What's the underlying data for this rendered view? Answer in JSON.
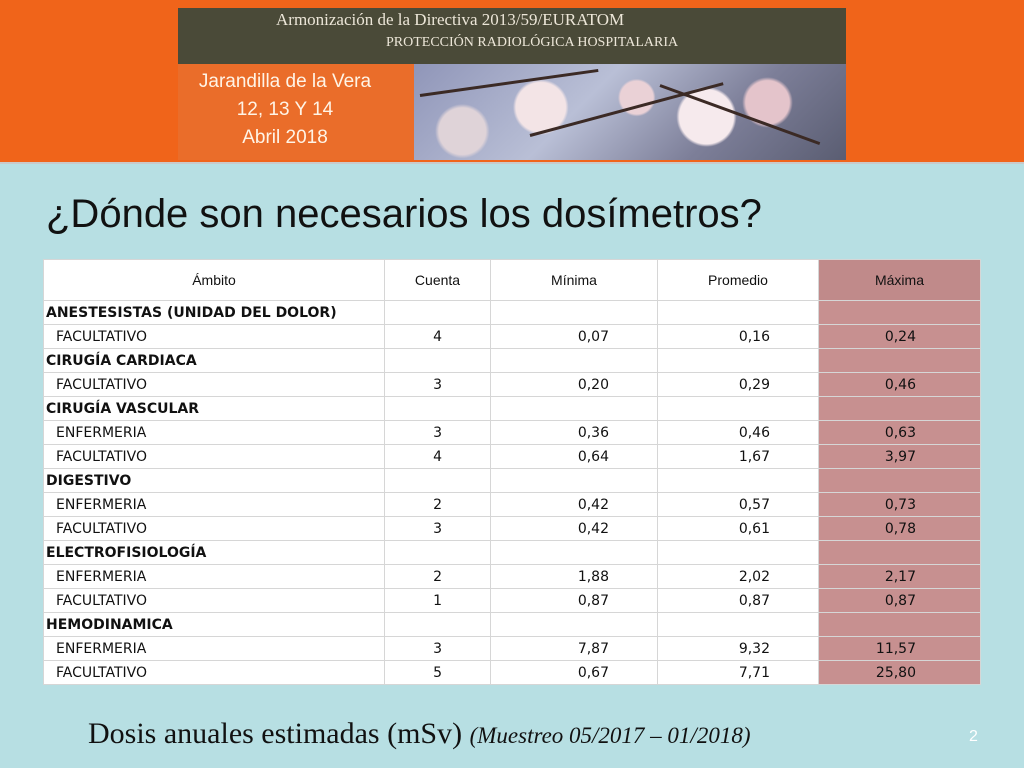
{
  "header": {
    "title": "Armonización de la Directiva 2013/59/EURATOM",
    "subtitle": "PROTECCIÓN RADIOLÓGICA HOSPITALARIA",
    "venue": [
      "Jarandilla de la Vera",
      "12, 13 Y 14",
      "Abril 2018"
    ]
  },
  "slide": {
    "title": "¿Dónde son necesarios los dosímetros?",
    "footer_main": "Dosis anuales estimadas (mSv) ",
    "footer_note": "(Muestreo 05/2017 – 01/2018)",
    "page_number": "2"
  },
  "table": {
    "headers": [
      "Ámbito",
      "Cuenta",
      "Mínima",
      "Promedio",
      "Máxima"
    ],
    "rows": [
      {
        "type": "group",
        "label": "ANESTESISTAS (UNIDAD DEL DOLOR)"
      },
      {
        "type": "item",
        "label": "FACULTATIVO",
        "cuenta": "4",
        "minima": "0,07",
        "promedio": "0,16",
        "maxima": "0,24"
      },
      {
        "type": "group",
        "label": "CIRUGÍA CARDIACA"
      },
      {
        "type": "item",
        "label": "FACULTATIVO",
        "cuenta": "3",
        "minima": "0,20",
        "promedio": "0,29",
        "maxima": "0,46"
      },
      {
        "type": "group",
        "label": "CIRUGÍA VASCULAR"
      },
      {
        "type": "item",
        "label": "ENFERMERIA",
        "cuenta": "3",
        "minima": "0,36",
        "promedio": "0,46",
        "maxima": "0,63"
      },
      {
        "type": "item",
        "label": "FACULTATIVO",
        "cuenta": "4",
        "minima": "0,64",
        "promedio": "1,67",
        "maxima": "3,97"
      },
      {
        "type": "group",
        "label": "DIGESTIVO"
      },
      {
        "type": "item",
        "label": "ENFERMERIA",
        "cuenta": "2",
        "minima": "0,42",
        "promedio": "0,57",
        "maxima": "0,73"
      },
      {
        "type": "item",
        "label": "FACULTATIVO",
        "cuenta": "3",
        "minima": "0,42",
        "promedio": "0,61",
        "maxima": "0,78"
      },
      {
        "type": "group",
        "label": "ELECTROFISIOLOGÍA"
      },
      {
        "type": "item",
        "label": "ENFERMERIA",
        "cuenta": "2",
        "minima": "1,88",
        "promedio": "2,02",
        "maxima": "2,17"
      },
      {
        "type": "item",
        "label": "FACULTATIVO",
        "cuenta": "1",
        "minima": "0,87",
        "promedio": "0,87",
        "maxima": "0,87"
      },
      {
        "type": "group",
        "label": "HEMODINAMICA"
      },
      {
        "type": "item",
        "label": "ENFERMERIA",
        "cuenta": "3",
        "minima": "7,87",
        "promedio": "9,32",
        "maxima": "11,57"
      },
      {
        "type": "item",
        "label": "FACULTATIVO",
        "cuenta": "5",
        "minima": "0,67",
        "promedio": "7,71",
        "maxima": "25,80"
      }
    ]
  },
  "colors": {
    "background": "#b7dfe3",
    "banner": "#f0641a",
    "max_column": "#c79090"
  }
}
